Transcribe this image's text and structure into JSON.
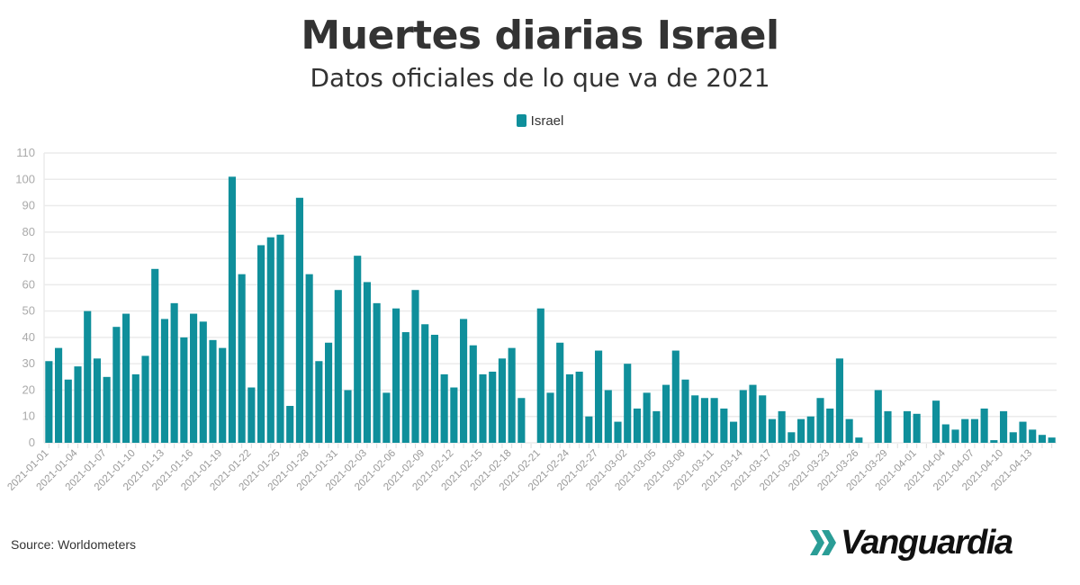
{
  "chart_data": {
    "type": "bar",
    "title": "Muertes diarias Israel",
    "subtitle": "Datos oficiales de lo que va de 2021",
    "xlabel": "",
    "ylabel": "",
    "ylim": [
      0,
      110
    ],
    "yticks": [
      0,
      10,
      20,
      30,
      40,
      50,
      60,
      70,
      80,
      90,
      100,
      110
    ],
    "grid": true,
    "legend_placement": "top-center",
    "x": [
      "2021-01-01",
      "2021-01-02",
      "2021-01-03",
      "2021-01-04",
      "2021-01-05",
      "2021-01-06",
      "2021-01-07",
      "2021-01-08",
      "2021-01-09",
      "2021-01-10",
      "2021-01-11",
      "2021-01-12",
      "2021-01-13",
      "2021-01-14",
      "2021-01-15",
      "2021-01-16",
      "2021-01-17",
      "2021-01-18",
      "2021-01-19",
      "2021-01-20",
      "2021-01-21",
      "2021-01-22",
      "2021-01-23",
      "2021-01-24",
      "2021-01-25",
      "2021-01-26",
      "2021-01-27",
      "2021-01-28",
      "2021-01-29",
      "2021-01-30",
      "2021-01-31",
      "2021-02-01",
      "2021-02-02",
      "2021-02-03",
      "2021-02-04",
      "2021-02-05",
      "2021-02-06",
      "2021-02-07",
      "2021-02-08",
      "2021-02-09",
      "2021-02-10",
      "2021-02-11",
      "2021-02-12",
      "2021-02-13",
      "2021-02-14",
      "2021-02-15",
      "2021-02-16",
      "2021-02-17",
      "2021-02-18",
      "2021-02-19",
      "2021-02-20",
      "2021-02-21",
      "2021-02-22",
      "2021-02-23",
      "2021-02-24",
      "2021-02-25",
      "2021-02-26",
      "2021-02-27",
      "2021-02-28",
      "2021-03-01",
      "2021-03-02",
      "2021-03-03",
      "2021-03-04",
      "2021-03-05",
      "2021-03-06",
      "2021-03-07",
      "2021-03-08",
      "2021-03-09",
      "2021-03-10",
      "2021-03-11",
      "2021-03-12",
      "2021-03-13",
      "2021-03-14",
      "2021-03-15",
      "2021-03-16",
      "2021-03-17",
      "2021-03-18",
      "2021-03-19",
      "2021-03-20",
      "2021-03-21",
      "2021-03-22",
      "2021-03-23",
      "2021-03-24",
      "2021-03-25",
      "2021-03-26",
      "2021-03-27",
      "2021-03-28",
      "2021-03-29",
      "2021-03-30",
      "2021-03-31",
      "2021-04-01",
      "2021-04-02",
      "2021-04-03",
      "2021-04-04",
      "2021-04-05",
      "2021-04-06",
      "2021-04-07",
      "2021-04-08",
      "2021-04-09",
      "2021-04-10",
      "2021-04-11",
      "2021-04-12",
      "2021-04-13",
      "2021-04-14",
      "2021-04-15"
    ],
    "x_tick_labels": [
      "2021-01-01",
      "2021-01-04",
      "2021-01-07",
      "2021-01-10",
      "2021-01-13",
      "2021-01-16",
      "2021-01-19",
      "2021-01-22",
      "2021-01-25",
      "2021-01-28",
      "2021-01-31",
      "2021-02-03",
      "2021-02-06",
      "2021-02-09",
      "2021-02-12",
      "2021-02-15",
      "2021-02-18",
      "2021-02-21",
      "2021-02-24",
      "2021-02-27",
      "2021-03-02",
      "2021-03-05",
      "2021-03-08",
      "2021-03-11",
      "2021-03-14",
      "2021-03-17",
      "2021-03-20",
      "2021-03-23",
      "2021-03-26",
      "2021-03-29",
      "2021-04-01",
      "2021-04-04",
      "2021-04-07",
      "2021-04-10",
      "2021-04-13"
    ],
    "series": [
      {
        "name": "Israel",
        "color": "#0f8f9b",
        "values": [
          31,
          36,
          24,
          29,
          50,
          32,
          25,
          44,
          49,
          26,
          33,
          66,
          47,
          53,
          40,
          49,
          46,
          39,
          36,
          101,
          64,
          21,
          75,
          78,
          79,
          14,
          93,
          64,
          31,
          38,
          58,
          20,
          71,
          61,
          53,
          19,
          51,
          42,
          58,
          45,
          41,
          26,
          21,
          47,
          37,
          26,
          27,
          32,
          36,
          17,
          0,
          51,
          19,
          38,
          26,
          27,
          10,
          35,
          20,
          8,
          30,
          13,
          19,
          12,
          22,
          35,
          24,
          18,
          17,
          17,
          13,
          8,
          20,
          22,
          18,
          9,
          12,
          4,
          9,
          10,
          17,
          13,
          32,
          9,
          2,
          0,
          20,
          12,
          0,
          12,
          11,
          0,
          16,
          7,
          5,
          9,
          9,
          13,
          1,
          12,
          4,
          8,
          5,
          3,
          2
        ]
      }
    ]
  },
  "footer": {
    "source": "Source: Worldometers",
    "logo_text": "Vanguardia",
    "logo_accent_color": "#2a9d96"
  }
}
